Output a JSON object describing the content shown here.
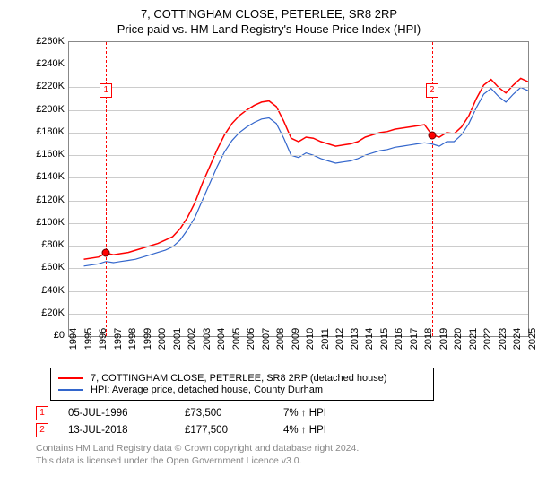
{
  "title": "7, COTTINGHAM CLOSE, PETERLEE, SR8 2RP",
  "subtitle": "Price paid vs. HM Land Registry's House Price Index (HPI)",
  "chart": {
    "type": "line",
    "background_color": "#ffffff",
    "grid_color": "#cccccc",
    "axis_color": "#888888",
    "xlim": [
      1994,
      2025
    ],
    "ylim": [
      0,
      260000
    ],
    "yticks": [
      0,
      20000,
      40000,
      60000,
      80000,
      100000,
      120000,
      140000,
      160000,
      180000,
      200000,
      220000,
      240000,
      260000
    ],
    "ytick_labels": [
      "£0",
      "£20K",
      "£40K",
      "£60K",
      "£80K",
      "£100K",
      "£120K",
      "£140K",
      "£160K",
      "£180K",
      "£200K",
      "£220K",
      "£240K",
      "£260K"
    ],
    "xticks": [
      1994,
      1995,
      1996,
      1997,
      1998,
      1999,
      2000,
      2001,
      2002,
      2003,
      2004,
      2005,
      2006,
      2007,
      2008,
      2009,
      2010,
      2011,
      2012,
      2013,
      2014,
      2015,
      2016,
      2017,
      2018,
      2019,
      2020,
      2021,
      2022,
      2023,
      2024,
      2025
    ],
    "series": [
      {
        "name": "7, COTTINGHAM CLOSE, PETERLEE, SR8 2RP (detached house)",
        "color": "#ff0000",
        "line_width": 1.5,
        "x": [
          1995,
          1996,
          1996.5,
          1997,
          1997.5,
          1998,
          1998.5,
          1999,
          1999.5,
          2000,
          2000.5,
          2001,
          2001.5,
          2002,
          2002.5,
          2003,
          2003.5,
          2004,
          2004.5,
          2005,
          2005.5,
          2006,
          2006.5,
          2007,
          2007.5,
          2008,
          2008.5,
          2009,
          2009.5,
          2010,
          2010.5,
          2011,
          2011.5,
          2012,
          2012.5,
          2013,
          2013.5,
          2014,
          2014.5,
          2015,
          2015.5,
          2016,
          2016.5,
          2017,
          2017.5,
          2018,
          2018.5,
          2019,
          2019.5,
          2020,
          2020.5,
          2021,
          2021.5,
          2022,
          2022.5,
          2023,
          2023.5,
          2024,
          2024.5,
          2025
        ],
        "y": [
          68000,
          70000,
          73500,
          72000,
          73000,
          74000,
          76000,
          78000,
          80000,
          82000,
          85000,
          88000,
          95000,
          105000,
          118000,
          135000,
          150000,
          165000,
          178000,
          188000,
          195000,
          200000,
          204000,
          207000,
          208000,
          203000,
          190000,
          175000,
          172000,
          176000,
          175000,
          172000,
          170000,
          168000,
          169000,
          170000,
          172000,
          176000,
          178000,
          180000,
          181000,
          183000,
          184000,
          185000,
          186000,
          187000,
          178000,
          176000,
          180000,
          179000,
          185000,
          195000,
          210000,
          222000,
          227000,
          220000,
          215000,
          222000,
          228000,
          225000
        ]
      },
      {
        "name": "HPI: Average price, detached house, County Durham",
        "color": "#3366cc",
        "line_width": 1.2,
        "x": [
          1995,
          1996,
          1996.5,
          1997,
          1997.5,
          1998,
          1998.5,
          1999,
          1999.5,
          2000,
          2000.5,
          2001,
          2001.5,
          2002,
          2002.5,
          2003,
          2003.5,
          2004,
          2004.5,
          2005,
          2005.5,
          2006,
          2006.5,
          2007,
          2007.5,
          2008,
          2008.5,
          2009,
          2009.5,
          2010,
          2010.5,
          2011,
          2011.5,
          2012,
          2012.5,
          2013,
          2013.5,
          2014,
          2014.5,
          2015,
          2015.5,
          2016,
          2016.5,
          2017,
          2017.5,
          2018,
          2018.5,
          2019,
          2019.5,
          2020,
          2020.5,
          2021,
          2021.5,
          2022,
          2022.5,
          2023,
          2023.5,
          2024,
          2024.5,
          2025
        ],
        "y": [
          62000,
          64000,
          66000,
          65000,
          66000,
          67000,
          68000,
          70000,
          72000,
          74000,
          76000,
          79000,
          85000,
          94000,
          105000,
          120000,
          135000,
          150000,
          163000,
          173000,
          180000,
          185000,
          189000,
          192000,
          193000,
          188000,
          175000,
          160000,
          158000,
          162000,
          160000,
          157000,
          155000,
          153000,
          154000,
          155000,
          157000,
          160000,
          162000,
          164000,
          165000,
          167000,
          168000,
          169000,
          170000,
          171000,
          170000,
          168000,
          172000,
          172000,
          178000,
          188000,
          202000,
          214000,
          219000,
          212000,
          207000,
          214000,
          220000,
          217000
        ]
      }
    ],
    "sale_markers": [
      {
        "label": "1",
        "x": 1996.5,
        "price": 73500,
        "bubble_y": 217000
      },
      {
        "label": "2",
        "x": 2018.5,
        "price": 177500,
        "bubble_y": 217000
      }
    ],
    "legend_position": "below",
    "label_fontsize": 11
  },
  "legend": {
    "items": [
      {
        "color": "#ff0000",
        "label": "7, COTTINGHAM CLOSE, PETERLEE, SR8 2RP (detached house)"
      },
      {
        "color": "#3366cc",
        "label": "HPI: Average price, detached house, County Durham"
      }
    ]
  },
  "sales": [
    {
      "marker": "1",
      "date": "05-JUL-1996",
      "price": "£73,500",
      "pct": "7% ↑ HPI"
    },
    {
      "marker": "2",
      "date": "13-JUL-2018",
      "price": "£177,500",
      "pct": "4% ↑ HPI"
    }
  ],
  "footer": {
    "line1": "Contains HM Land Registry data © Crown copyright and database right 2024.",
    "line2": "This data is licensed under the Open Government Licence v3.0."
  }
}
